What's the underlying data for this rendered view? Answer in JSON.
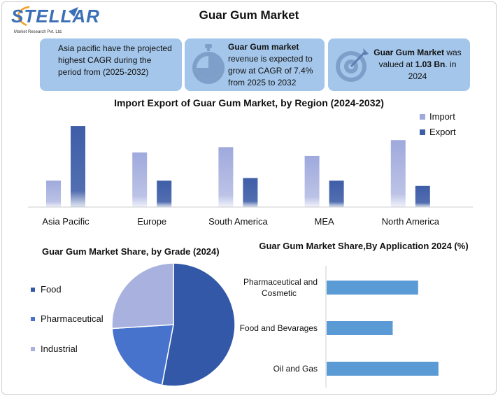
{
  "logo": {
    "name": "STELLAR",
    "tagline": "Market Research Pvt. Ltd."
  },
  "title": "Guar Gum Market",
  "cards": {
    "card1": "Asia pacific have the projected highest CAGR during the period from (2025-2032)",
    "card2_bold": "Guar Gum market",
    "card2_rest": "revenue is expected to grow at CAGR of 7.4% from 2025 to 2032",
    "card3_bold1": "Guar Gum Market",
    "card3_mid": " was valued at ",
    "card3_bold2": "1.03 Bn",
    "card3_end": ". in 2024"
  },
  "icons": {
    "card2": "stopwatch-icon",
    "card3": "target-icon"
  },
  "colors": {
    "import": "#9fa9dc",
    "export": "#3f5ea8",
    "card_bg": "#a4c6ea",
    "bar_h": "#5b9bd5",
    "food": "#3358a7",
    "pharma": "#4773cc",
    "industrial": "#a9b1de"
  },
  "chart_data": [
    {
      "type": "bar",
      "title": "Import Export of Guar Gum Market, by Region (2024-2032)",
      "categories": [
        "Asia Pacific",
        "Europe",
        "South America",
        "MEA",
        "North America"
      ],
      "series": [
        {
          "name": "Import",
          "values": [
            30,
            62,
            68,
            58,
            76
          ]
        },
        {
          "name": "Export",
          "values": [
            92,
            30,
            33,
            30,
            24
          ]
        }
      ],
      "ylim": [
        0,
        100
      ],
      "legend": "top-right",
      "grid": false
    },
    {
      "type": "pie",
      "title": "Guar Gum Market Share, by Grade (2024)",
      "categories": [
        "Food",
        "Pharmaceutical",
        "Industrial"
      ],
      "values": [
        53,
        21,
        26
      ],
      "legend": "left"
    },
    {
      "type": "bar",
      "orientation": "horizontal",
      "title": "Guar Gum Market Share,By Application 2024 (%)",
      "categories": [
        "Pharmaceutical and Cosmetic",
        "Food and Bevarages",
        "Oil and Gas"
      ],
      "values": [
        36,
        26,
        44
      ],
      "xlim": [
        0,
        60
      ],
      "grid": false
    }
  ]
}
